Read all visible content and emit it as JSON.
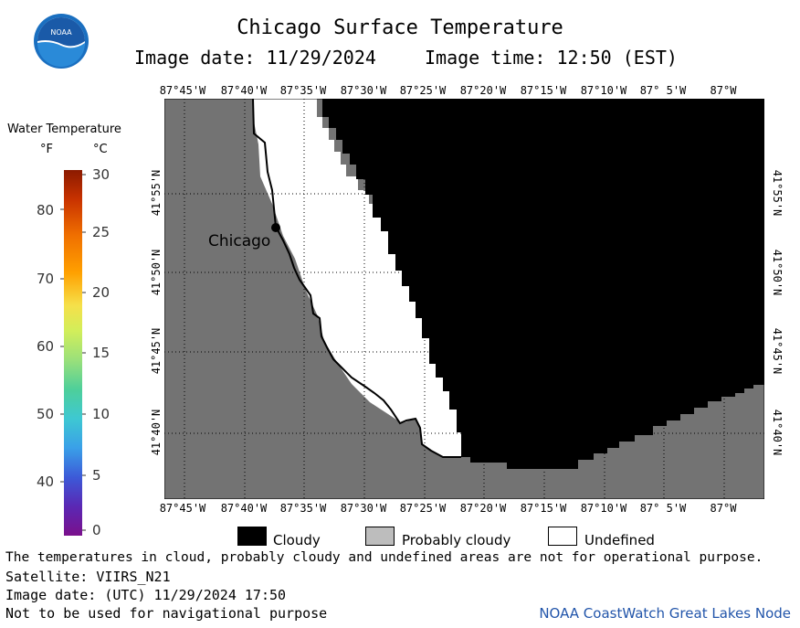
{
  "title": "Chicago Surface Temperature",
  "image_date_label": "Image date: 11/29/2024",
  "image_time_label": "Image time: 12:50 (EST)",
  "logo_text": "NOAA",
  "colorbar": {
    "title": "Water Temperature",
    "unit_f": "°F",
    "unit_c": "°C",
    "f_ticks": [
      "80",
      "70",
      "60",
      "50",
      "40"
    ],
    "c_ticks": [
      "30",
      "25",
      "20",
      "15",
      "10",
      "5",
      "0"
    ]
  },
  "map": {
    "lon_labels": [
      "87°45'W",
      "87°40'W",
      "87°35'W",
      "87°30'W",
      "87°25'W",
      "87°20'W",
      "87°15'W",
      "87°10'W",
      "87° 5'W",
      "87°W"
    ],
    "lat_labels": [
      "41°55'N",
      "41°50'N",
      "41°45'N",
      "41°40'N"
    ],
    "city_label": "Chicago",
    "colors": {
      "land": "#737373",
      "cloudy": "#000000",
      "undefined": "#ffffff"
    }
  },
  "legend": [
    {
      "label": "Cloudy",
      "color": "#000000"
    },
    {
      "label": "Probably cloudy",
      "color": "#bdbdbd"
    },
    {
      "label": "Undefined",
      "color": "#ffffff"
    }
  ],
  "footer": {
    "disclaimer": "The temperatures in cloud, probably cloudy and undefined areas are not for operational purpose.",
    "satellite": "Satellite: VIIRS_N21",
    "utc_date": "Image date: (UTC) 11/29/2024  17:50",
    "nav_warning": "Not to be used for navigational purpose",
    "credit": "NOAA CoastWatch Great Lakes Node"
  }
}
